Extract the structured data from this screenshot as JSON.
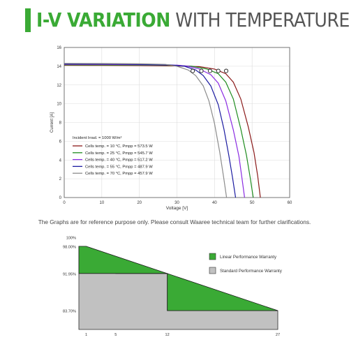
{
  "header": {
    "title_bold": "I-V VARIATION",
    "title_light": "WITH TEMPERATURE",
    "accent_color": "#3aaa35"
  },
  "note": "The Graphs are for reference purpose only. Please consult Waaree technical team for further clarifications.",
  "chart_data": [
    {
      "type": "line",
      "xlabel": "Voltage [V]",
      "ylabel": "Current [A]",
      "xlim": [
        0,
        60
      ],
      "ylim": [
        0,
        16
      ],
      "xticks": [
        0,
        10,
        20,
        30,
        40,
        50,
        60
      ],
      "yticks": [
        0,
        2,
        4,
        6,
        8,
        10,
        12,
        14,
        16
      ],
      "grid": true,
      "legend_position": "bottom-left",
      "annotation": "Incident Irrad. = 1000 W/m²",
      "series": [
        {
          "name": "Cells temp. = 10 °C,  Pmpp = 573.5 W",
          "color": "#8b1a1a",
          "x": [
            0,
            10,
            20,
            30,
            36,
            40,
            43,
            45,
            47,
            49,
            50.5,
            51.5,
            52.2
          ],
          "y": [
            14.1,
            14.09,
            14.07,
            14.03,
            13.95,
            13.7,
            13.2,
            12.3,
            10.5,
            7.5,
            4.8,
            2.3,
            0
          ]
        },
        {
          "name": "Cells temp. = 25 °C,  Pmpp = 545.7 W",
          "color": "#1e8c1e",
          "x": [
            0,
            10,
            20,
            30,
            34,
            38,
            41,
            43,
            45,
            47,
            48.5,
            49.5,
            50.3
          ],
          "y": [
            14.15,
            14.14,
            14.12,
            14.08,
            14.0,
            13.7,
            13.2,
            12.3,
            10.5,
            7.3,
            4.5,
            2.1,
            0
          ]
        },
        {
          "name": "Cells temp. = 40 °C,  Pmpp = 517.2 W",
          "color": "#8a2be2",
          "x": [
            0,
            10,
            20,
            30,
            33,
            36,
            39,
            41,
            43,
            45,
            46.5,
            47.3,
            48.0
          ],
          "y": [
            14.2,
            14.19,
            14.17,
            14.12,
            14.0,
            13.7,
            13.1,
            12.2,
            10.3,
            7.2,
            4.4,
            2.1,
            0
          ]
        },
        {
          "name": "Cells temp. = 55 °C,  Pmpp = 487.9 W",
          "color": "#1a1aa0",
          "x": [
            0,
            10,
            20,
            28,
            32,
            35,
            37,
            39,
            41,
            42.5,
            43.8,
            44.8,
            45.6
          ],
          "y": [
            14.25,
            14.24,
            14.21,
            14.15,
            14.0,
            13.6,
            13.0,
            11.9,
            9.9,
            7.3,
            4.5,
            2.1,
            0
          ]
        },
        {
          "name": "Cells temp. = 70 °C,  Pmpp = 457.9 W",
          "color": "#8c8c8c",
          "x": [
            0,
            10,
            20,
            27,
            30,
            33,
            35,
            37,
            38.5,
            40,
            41.4,
            42.4,
            43.2
          ],
          "y": [
            14.3,
            14.29,
            14.26,
            14.2,
            14.0,
            13.6,
            13.0,
            11.9,
            10.3,
            7.9,
            4.8,
            2.2,
            0
          ]
        }
      ],
      "mpp_markers": [
        {
          "x": 34.2,
          "y": 13.5
        },
        {
          "x": 36.5,
          "y": 13.5
        },
        {
          "x": 38.8,
          "y": 13.5
        },
        {
          "x": 41.0,
          "y": 13.5
        },
        {
          "x": 43.1,
          "y": 13.5
        }
      ]
    },
    {
      "type": "area",
      "x_ticks": [
        1,
        5,
        12,
        27
      ],
      "y_ticks": [
        "100%",
        "98.00%",
        "91.95%",
        "83.70%"
      ],
      "y_tick_values": [
        100,
        98,
        91.95,
        83.7
      ],
      "y_floor": 79.5,
      "legend_position": "right",
      "series": [
        {
          "name": "Linear Performance Warranty",
          "color": "#3aaa35",
          "x": [
            1,
            1,
            27
          ],
          "y": [
            91.95,
            98,
            83.7
          ]
        },
        {
          "name": "Standard Performance Warranty",
          "color": "#c1c1c1",
          "x": [
            0,
            1,
            5,
            12,
            12,
            27
          ],
          "y": [
            98,
            98,
            91.95,
            91.95,
            83.7,
            83.7
          ]
        }
      ]
    }
  ]
}
